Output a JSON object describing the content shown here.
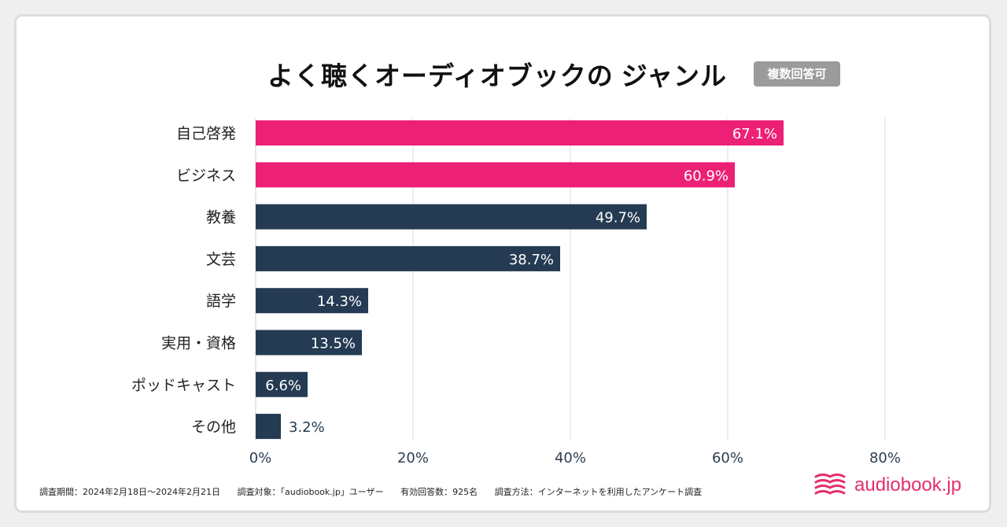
{
  "title_main": "よく聴くオーディオブックの",
  "title_highlight": "ジャンル",
  "badge": "複数回答可",
  "colors": {
    "highlight": "#ec2074",
    "default": "#243b53",
    "accent": "#ffe05c",
    "logo": "#e52d6c"
  },
  "chart_data": {
    "type": "bar",
    "orientation": "horizontal",
    "title": "よく聴くオーディオブックのジャンル",
    "categories": [
      "自己啓発",
      "ビジネス",
      "教養",
      "文芸",
      "語学",
      "実用・資格",
      "ポッドキャスト",
      "その他"
    ],
    "values": [
      67.1,
      60.9,
      49.7,
      38.7,
      14.3,
      13.5,
      6.6,
      3.2
    ],
    "value_labels": [
      "67.1%",
      "60.9%",
      "49.7%",
      "38.7%",
      "14.3%",
      "13.5%",
      "6.6%",
      "3.2%"
    ],
    "highlighted": [
      true,
      true,
      false,
      false,
      false,
      false,
      false,
      false
    ],
    "xlim": [
      0,
      80
    ],
    "xticks": [
      0,
      20,
      40,
      60,
      80
    ],
    "xtick_labels": [
      "0%",
      "20%",
      "40%",
      "60%",
      "80%"
    ],
    "grid": true
  },
  "footer": {
    "period": "調査期間：2024年2月18日〜2024年2月21日",
    "target": "調査対象：「audiobook.jp」ユーザー",
    "respondents": "有効回答数：925名",
    "method": "調査方法：インターネットを利用したアンケート調査"
  },
  "logo_text": "audiobook.jp"
}
